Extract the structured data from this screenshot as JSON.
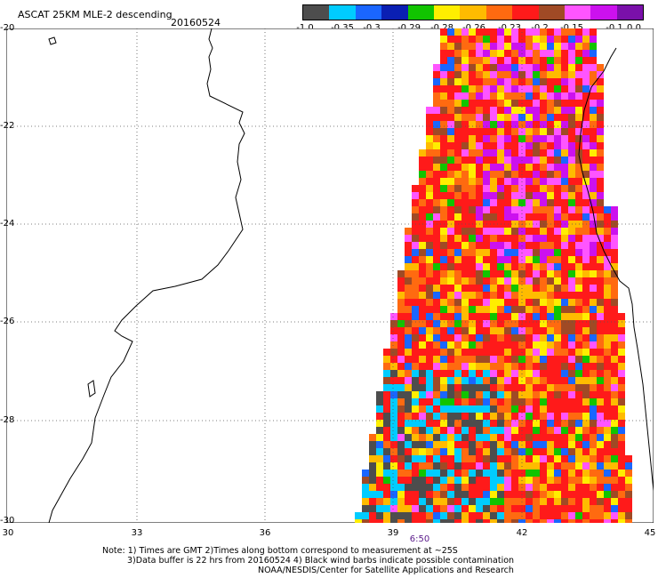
{
  "header": {
    "title": "ASCAT 25KM MLE-2 descending",
    "date": "20160524"
  },
  "colorbar": {
    "colors": [
      "#4d4d4d",
      "#00ccff",
      "#1a66ff",
      "#0a1fb3",
      "#11c400",
      "#ffee00",
      "#ffbb00",
      "#ff6a10",
      "#ff1a1a",
      "#a04a25",
      "#ff55ff",
      "#cc11ee",
      "#7a10aa"
    ],
    "labels": [
      "-1.0",
      "-0.35",
      "-0.3",
      "-0.29",
      "-0.28",
      "-0.26",
      "-0.23",
      "-0.2",
      "-0.15",
      "-0.1",
      "0.0"
    ]
  },
  "axes": {
    "y_labels": [
      "-20",
      "-22",
      "-24",
      "-26",
      "-28",
      "-30"
    ],
    "x_labels": [
      "30",
      "33",
      "36",
      "39",
      "42",
      "45"
    ],
    "time_label": "6:50"
  },
  "notes": {
    "line1": "Note: 1) Times are GMT 2)Times along bottom correspond to measurement at ~25S",
    "line2": "3)Data buffer is 22 hrs from 20160524 4) Black wind barbs indicate possible contamination",
    "line3": "NOAA/NESDIS/Center for Satellite Applications and Research"
  }
}
